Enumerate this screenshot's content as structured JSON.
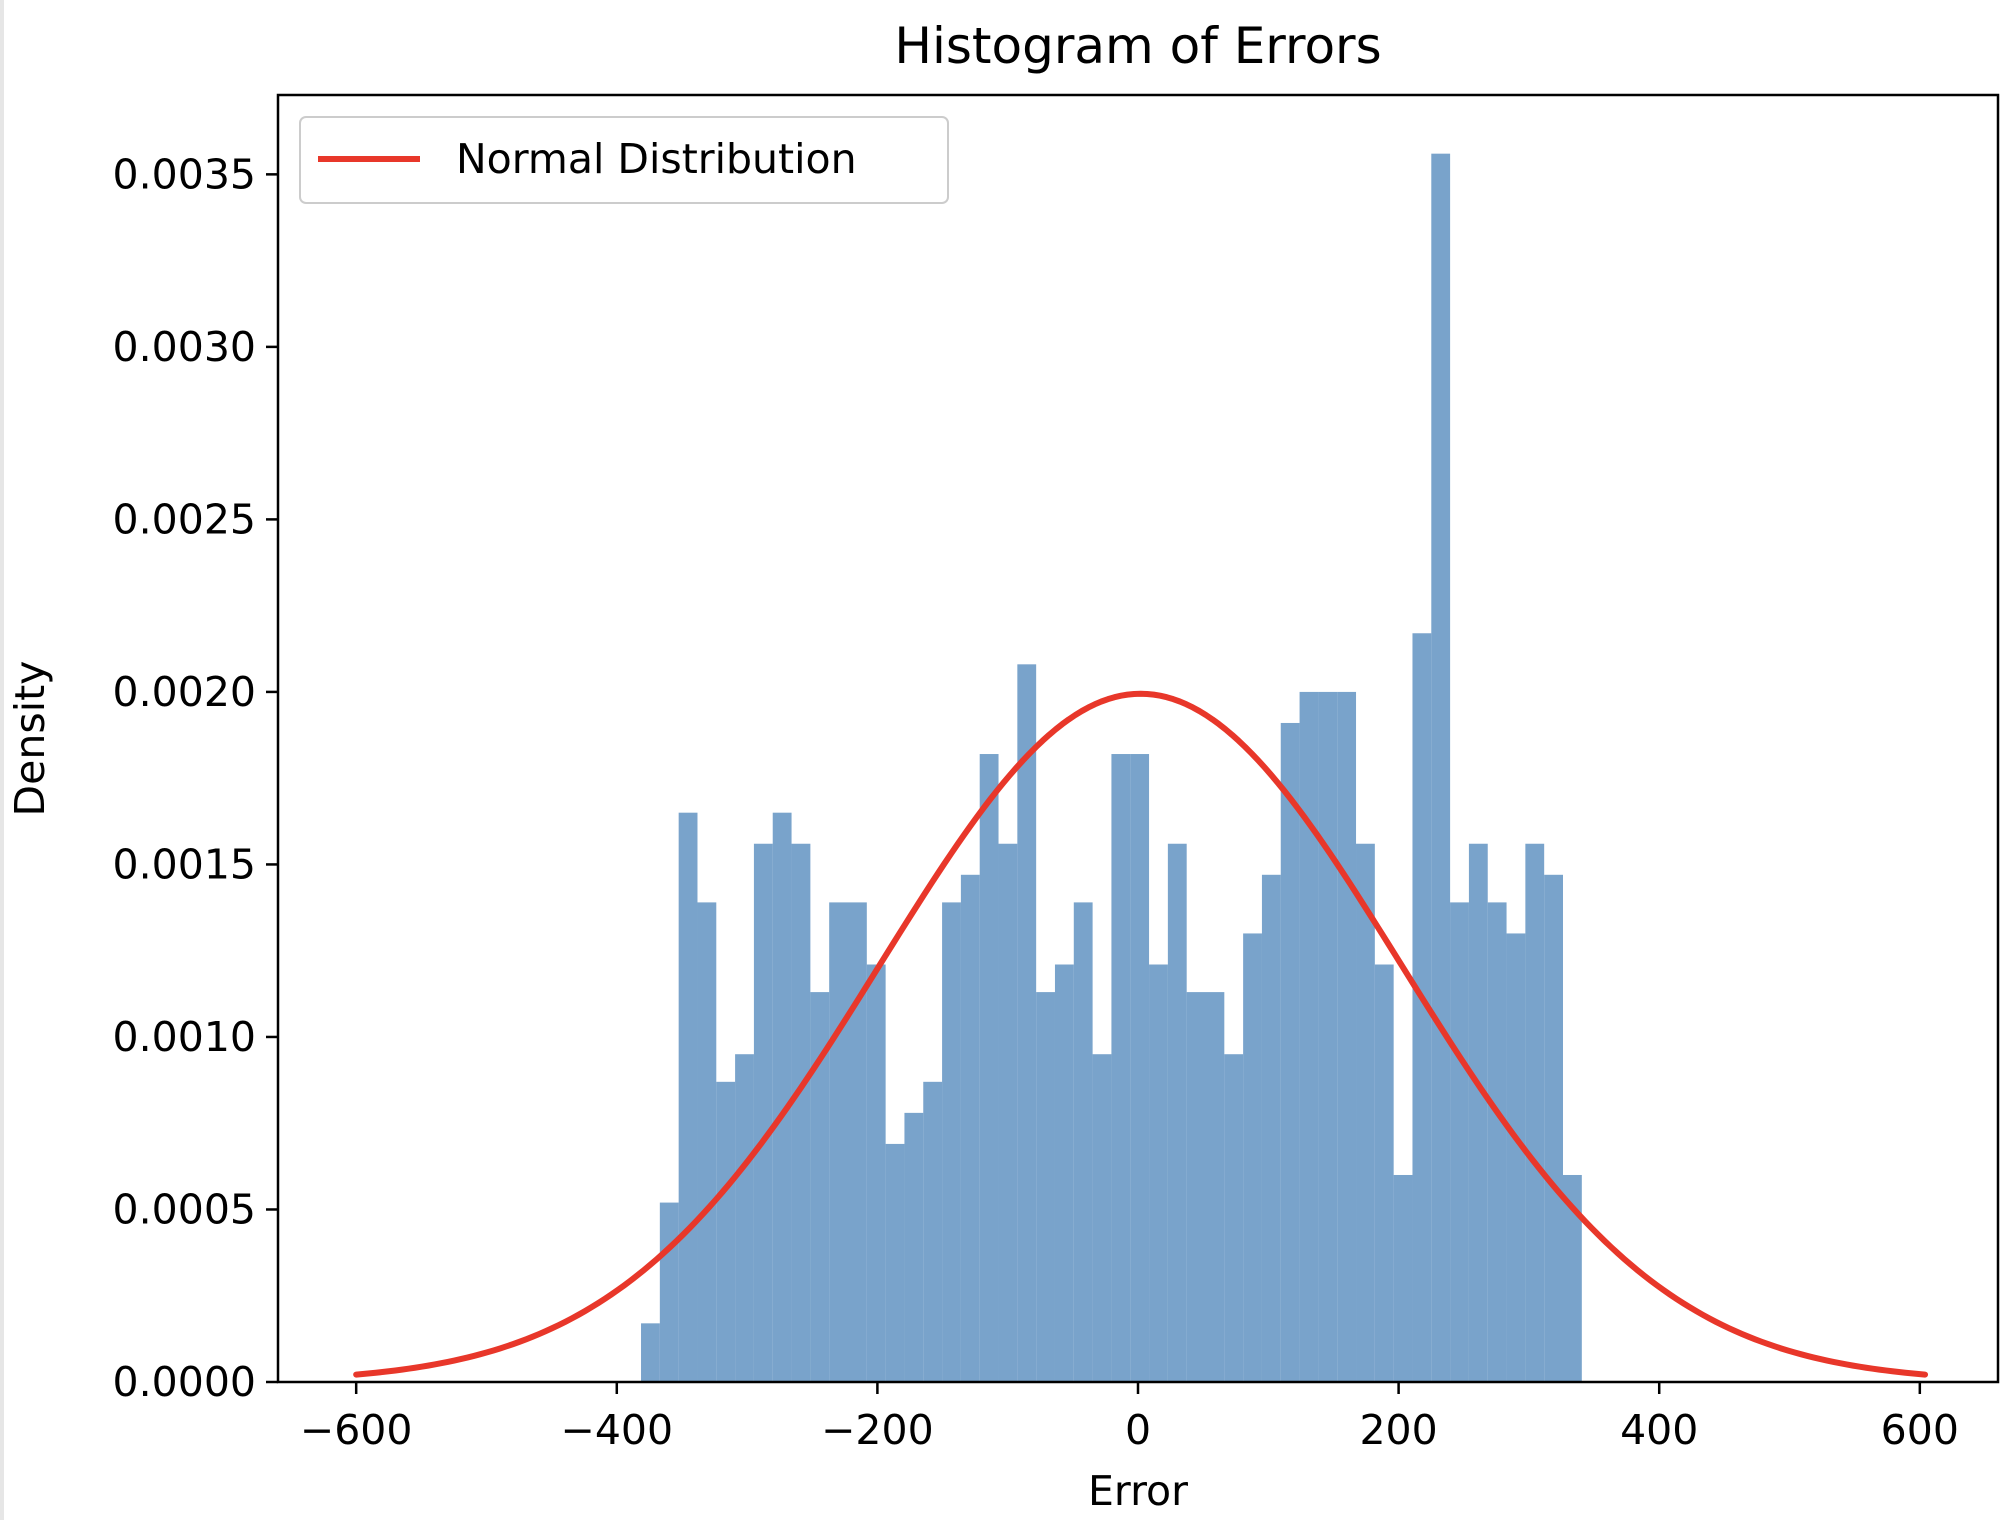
{
  "chart_data": {
    "type": "bar",
    "title": "Histogram of Errors",
    "xlabel": "Error",
    "ylabel": "Density",
    "xlim": [
      -660,
      660
    ],
    "ylim": [
      0,
      0.00373
    ],
    "xticks": [
      -600,
      -400,
      -200,
      0,
      200,
      400,
      600
    ],
    "xtick_labels": [
      "−600",
      "−400",
      "−200",
      "0",
      "200",
      "400",
      "600"
    ],
    "yticks": [
      0,
      0.0005,
      0.001,
      0.0015,
      0.002,
      0.0025,
      0.003,
      0.0035
    ],
    "ytick_labels": [
      "0.0000",
      "0.0005",
      "0.0010",
      "0.0015",
      "0.0020",
      "0.0025",
      "0.0030",
      "0.0035"
    ],
    "grid": false,
    "legend": {
      "position": "top-left",
      "entries": [
        {
          "label": "Normal Distribution",
          "color": "#e8372a"
        }
      ]
    },
    "histogram": {
      "color": "#5b8fc0",
      "bin_start": -381.4,
      "bin_width": 14.44,
      "densities": [
        0.00017,
        0.00052,
        0.00165,
        0.00139,
        0.00087,
        0.00095,
        0.00156,
        0.00165,
        0.00156,
        0.00113,
        0.00139,
        0.00139,
        0.00121,
        0.00069,
        0.00078,
        0.00087,
        0.00139,
        0.00147,
        0.00182,
        0.00156,
        0.00208,
        0.00113,
        0.00121,
        0.00139,
        0.00095,
        0.00182,
        0.00182,
        0.00121,
        0.00156,
        0.00113,
        0.00113,
        0.00095,
        0.0013,
        0.00147,
        0.00191,
        0.002,
        0.002,
        0.002,
        0.00156,
        0.00121,
        0.0006,
        0.00217,
        0.00356,
        0.00139,
        0.00156,
        0.00139,
        0.0013,
        0.00156,
        0.00147,
        0.0006
      ]
    },
    "series": [
      {
        "name": "Normal Distribution",
        "type": "line",
        "color": "#e8372a",
        "mean": 2,
        "std": 200,
        "x_range": [
          -600,
          604
        ]
      }
    ]
  }
}
